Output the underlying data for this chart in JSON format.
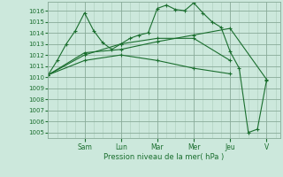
{
  "background_color": "#cce8dc",
  "grid_major_color": "#88aa99",
  "grid_minor_color": "#aaccbb",
  "line_color": "#1a6e2e",
  "xlabel": "Pression niveau de la mer( hPa )",
  "ylim": [
    1004.5,
    1016.8
  ],
  "yticks": [
    1005,
    1006,
    1007,
    1008,
    1009,
    1010,
    1011,
    1012,
    1013,
    1014,
    1015,
    1016
  ],
  "x_day_labels": [
    "Sam",
    "Lun",
    "Mar",
    "Mer",
    "Jeu",
    "V"
  ],
  "x_day_positions": [
    4,
    8,
    12,
    16,
    20,
    24
  ],
  "xlim": [
    0,
    25.5
  ],
  "series": [
    {
      "x": [
        0,
        1,
        2,
        3,
        4,
        5,
        6,
        7,
        8,
        9,
        10,
        11,
        12,
        13,
        14,
        15,
        16,
        17,
        18,
        19,
        20,
        21,
        22,
        23,
        24
      ],
      "y": [
        1010.2,
        1011.5,
        1013.0,
        1014.2,
        1015.8,
        1014.2,
        1013.1,
        1012.5,
        1013.0,
        1013.5,
        1013.8,
        1014.0,
        1016.2,
        1016.5,
        1016.1,
        1016.0,
        1016.7,
        1015.8,
        1015.0,
        1014.5,
        1012.3,
        1010.8,
        1005.0,
        1005.3,
        1009.7
      ]
    },
    {
      "x": [
        0,
        4,
        8,
        12,
        16,
        20,
        24
      ],
      "y": [
        1010.2,
        1012.2,
        1012.5,
        1013.2,
        1013.8,
        1014.4,
        1009.8
      ]
    },
    {
      "x": [
        0,
        4,
        8,
        12,
        16,
        20
      ],
      "y": [
        1010.2,
        1012.0,
        1013.0,
        1013.5,
        1013.5,
        1011.5
      ]
    },
    {
      "x": [
        0,
        4,
        8,
        12,
        16,
        20
      ],
      "y": [
        1010.2,
        1011.5,
        1012.0,
        1011.5,
        1010.8,
        1010.3
      ]
    }
  ]
}
